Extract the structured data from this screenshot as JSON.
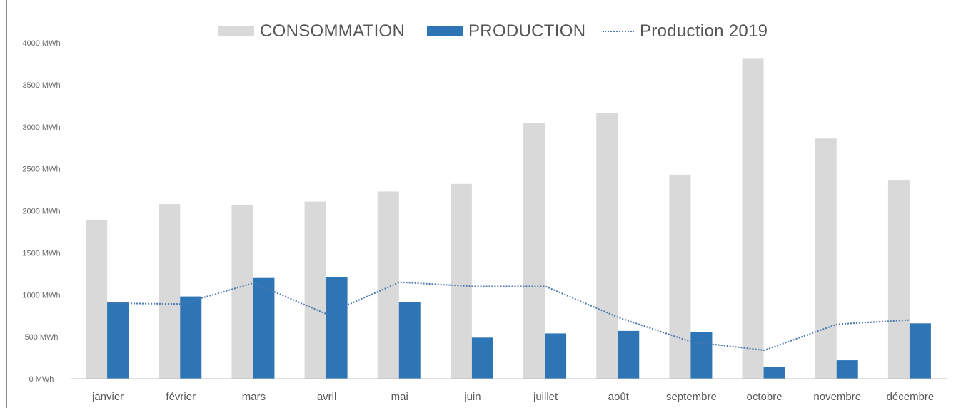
{
  "chart_data": {
    "type": "bar",
    "title": "",
    "xlabel": "",
    "ylabel": "",
    "ylim": [
      0,
      4000
    ],
    "yticks": [
      0,
      500,
      1000,
      1500,
      2000,
      2500,
      3000,
      3500,
      4000
    ],
    "y_unit": "MWh",
    "y_tick_labels": [
      "0 MWh",
      "500 MWh",
      "1000 MWh",
      "1500 MWh",
      "2000 MWh",
      "2500 MWh",
      "3000 MWh",
      "3500 MWh",
      "4000 MWh"
    ],
    "grid": false,
    "legend_position": "top",
    "categories": [
      "janvier",
      "février",
      "mars",
      "avril",
      "mai",
      "juin",
      "juillet",
      "août",
      "septembre",
      "octobre",
      "novembre",
      "décembre"
    ],
    "series": [
      {
        "name": "CONSOMMATION",
        "type": "bar",
        "color": "#d9d9d9",
        "values": [
          1890,
          2080,
          2070,
          2110,
          2230,
          2320,
          3040,
          3160,
          2430,
          3810,
          2860,
          2360
        ]
      },
      {
        "name": "PRODUCTION",
        "type": "bar",
        "color": "#2e75b6",
        "values": [
          910,
          980,
          1200,
          1210,
          910,
          490,
          540,
          570,
          560,
          140,
          220,
          660
        ]
      },
      {
        "name": "Production 2019",
        "type": "line",
        "style": "dotted",
        "color": "#4a77b0",
        "values": [
          900,
          890,
          1140,
          770,
          1150,
          1100,
          1100,
          730,
          440,
          340,
          650,
          700
        ]
      }
    ]
  }
}
